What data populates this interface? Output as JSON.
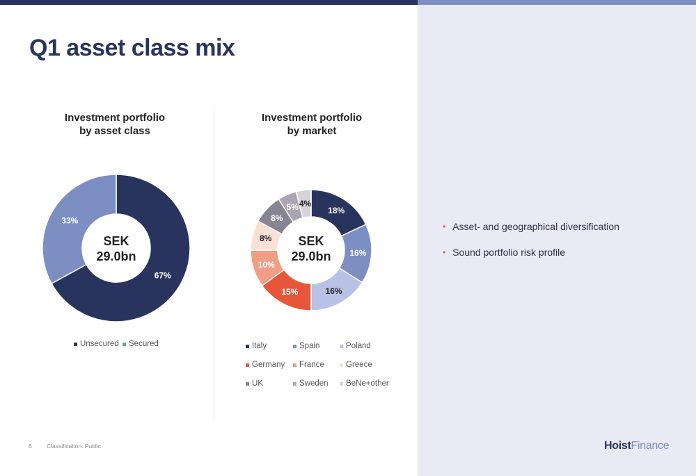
{
  "page": {
    "title": "Q1 asset class mix"
  },
  "colors": {
    "navy": "#29345e",
    "periwinkle": "#7d8ec3",
    "accent": "#e8563a",
    "panel": "#e9ebf4"
  },
  "chart_data": [
    {
      "type": "donut",
      "title": [
        "Investment portfolio",
        "by asset class"
      ],
      "center_label": [
        "SEK",
        "29.0bn"
      ],
      "unit": "%",
      "start_angle_deg": 0,
      "series": [
        {
          "name": "Unsecured",
          "value": 67,
          "label": "67%",
          "color": "#29345e",
          "label_color": "#ffffff"
        },
        {
          "name": "Secured",
          "value": 33,
          "label": "33%",
          "color": "#7d8ec3",
          "label_color": "#ffffff"
        }
      ],
      "legend": [
        "Unsecured",
        "Secured"
      ],
      "legend_placement": "bottom"
    },
    {
      "type": "donut",
      "title": [
        "Investment portfolio",
        "by market"
      ],
      "center_label": [
        "SEK",
        "29.0bn"
      ],
      "unit": "%",
      "start_angle_deg": 0,
      "series": [
        {
          "name": "Italy",
          "value": 18,
          "label": "18%",
          "color": "#29345e",
          "label_color": "#ffffff"
        },
        {
          "name": "Spain",
          "value": 16,
          "label": "16%",
          "color": "#7d8ec3",
          "label_color": "#ffffff"
        },
        {
          "name": "Poland",
          "value": 16,
          "label": "16%",
          "color": "#b9c2e6",
          "label_color": "#222222"
        },
        {
          "name": "Germany",
          "value": 15,
          "label": "15%",
          "color": "#e8563a",
          "label_color": "#ffffff"
        },
        {
          "name": "France",
          "value": 10,
          "label": "10%",
          "color": "#f29d86",
          "label_color": "#ffffff"
        },
        {
          "name": "Greece",
          "value": 8,
          "label": "8%",
          "color": "#fbe0d6",
          "label_color": "#222222"
        },
        {
          "name": "UK",
          "value": 8,
          "label": "8%",
          "color": "#888593",
          "label_color": "#ffffff"
        },
        {
          "name": "Sweden",
          "value": 5,
          "label": "5%",
          "color": "#aba4b1",
          "label_color": "#ffffff"
        },
        {
          "name": "BeNe+other",
          "value": 4,
          "label": "4%",
          "color": "#d6d4da",
          "label_color": "#222222"
        }
      ],
      "legend": [
        "Italy",
        "Spain",
        "Poland",
        "Germany",
        "France",
        "Greece",
        "UK",
        "Sweden",
        "BeNe+other"
      ],
      "legend_placement": "bottom"
    }
  ],
  "bullets": [
    "Asset- and geographical diversification",
    "Sound portfolio risk profile"
  ],
  "footer": {
    "page_number": "6",
    "classification": "Classification: Public"
  },
  "logo": {
    "part1": "Hoist",
    "part2": "Finance"
  }
}
